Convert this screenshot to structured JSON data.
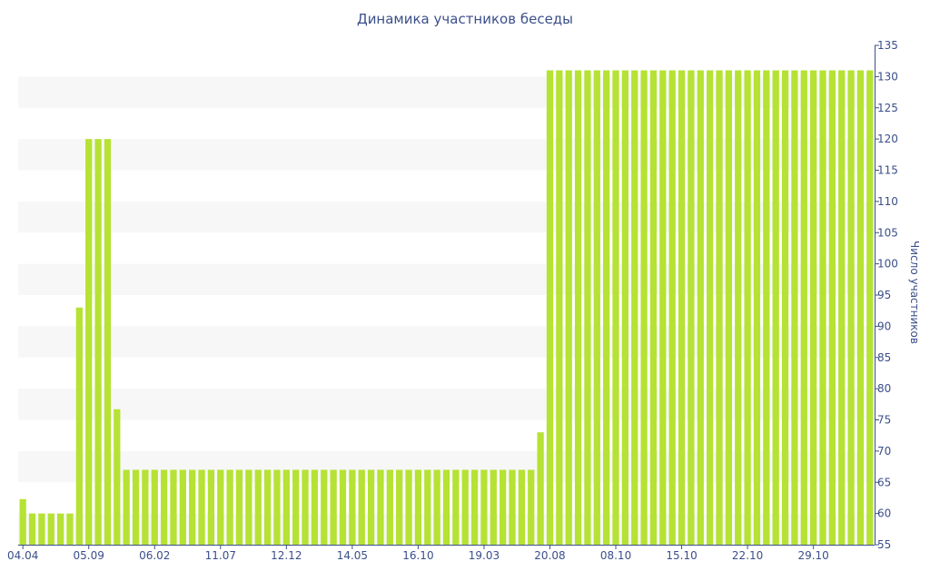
{
  "chart_data": {
    "type": "bar",
    "title": "Динамика участников беседы",
    "xlabel": "",
    "ylabel": "Число участников",
    "ylim": [
      55,
      135
    ],
    "y_ticks": [
      55,
      60,
      65,
      70,
      75,
      80,
      85,
      90,
      95,
      100,
      105,
      110,
      115,
      120,
      125,
      130,
      135
    ],
    "y_axis_side": "right",
    "x_tick_labels": [
      "04.04",
      "05.09",
      "06.02",
      "11.07",
      "12.12",
      "14.05",
      "16.10",
      "19.03",
      "20.08",
      "08.10",
      "15.10",
      "22.10",
      "29.10"
    ],
    "x_tick_bar_index": [
      0,
      7,
      14,
      21,
      28,
      35,
      42,
      49,
      56,
      63,
      70,
      77,
      84
    ],
    "grid": "horizontal bands",
    "legend": "none",
    "colors": {
      "bar": "#b5e233",
      "band": "#f7f7f7",
      "text": "#3b4f8a",
      "axis": "#3b4f8a"
    },
    "values": [
      62.3,
      60,
      60,
      60,
      60,
      60,
      93,
      120,
      120,
      120,
      76.7,
      67,
      67,
      67,
      67,
      67,
      67,
      67,
      67,
      67,
      67,
      67,
      67,
      67,
      67,
      67,
      67,
      67,
      67,
      67,
      67,
      67,
      67,
      67,
      67,
      67,
      67,
      67,
      67,
      67,
      67,
      67,
      67,
      67,
      67,
      67,
      67,
      67,
      67,
      67,
      67,
      67,
      67,
      67,
      67,
      73,
      131,
      131,
      131,
      131,
      131,
      131,
      131,
      131,
      131,
      131,
      131,
      131,
      131,
      131,
      131,
      131,
      131,
      131,
      131,
      131,
      131,
      131,
      131,
      131,
      131,
      131,
      131,
      131,
      131,
      131,
      131,
      131,
      131,
      131,
      131
    ]
  }
}
